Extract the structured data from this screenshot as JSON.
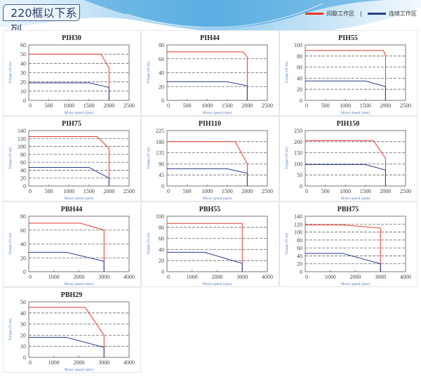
{
  "header": {
    "title": "220框以下系列"
  },
  "legend": {
    "intermittent": "间歇工作区",
    "continuous": "连续工作区",
    "separator": "|",
    "intermittent_color": "#e8382c",
    "continuous_color": "#283a8c"
  },
  "chart_data": [
    {
      "type": "line",
      "title": "PIH30",
      "xlabel": "Motor speed (rpm)",
      "ylabel": "Torque (N·m)",
      "xlim": [
        0,
        2500
      ],
      "xticks": [
        0,
        500,
        1000,
        1500,
        2000,
        2500
      ],
      "ylim": [
        0,
        60
      ],
      "yticks": [
        0,
        10,
        20,
        30,
        40,
        50,
        60
      ],
      "grid": "dashed",
      "series": [
        {
          "x": [
            0,
            1800,
            2000,
            2000
          ],
          "y": [
            50,
            50,
            35,
            0
          ]
        },
        {
          "x": [
            0,
            1500,
            2000,
            2000
          ],
          "y": [
            19,
            19,
            14,
            0
          ]
        }
      ]
    },
    {
      "type": "line",
      "title": "PIH44",
      "xlabel": "Motor speed (rpm)",
      "ylabel": "Torque (N·m)",
      "xlim": [
        0,
        2500
      ],
      "xticks": [
        0,
        500,
        1000,
        1500,
        2000,
        2500
      ],
      "ylim": [
        0,
        80
      ],
      "yticks": [
        0,
        20,
        40,
        60,
        80
      ],
      "grid": "dashed",
      "series": [
        {
          "x": [
            0,
            1900,
            2000,
            2000
          ],
          "y": [
            70,
            70,
            62,
            0
          ]
        },
        {
          "x": [
            0,
            1500,
            2000,
            2000
          ],
          "y": [
            27,
            27,
            21,
            0
          ]
        }
      ]
    },
    {
      "type": "line",
      "title": "PIH55",
      "xlabel": "Motor speed (rpm)",
      "ylabel": "Torque (N·m)",
      "xlim": [
        0,
        2500
      ],
      "xticks": [
        0,
        500,
        1000,
        1500,
        2000,
        2500
      ],
      "ylim": [
        0,
        100
      ],
      "yticks": [
        0,
        20,
        40,
        60,
        80,
        100
      ],
      "grid": "dashed",
      "series": [
        {
          "x": [
            0,
            1950,
            2000,
            2000
          ],
          "y": [
            90,
            90,
            80,
            0
          ]
        },
        {
          "x": [
            0,
            1500,
            2000,
            2000
          ],
          "y": [
            35,
            35,
            25,
            0
          ]
        }
      ]
    },
    {
      "type": "line",
      "title": "PIH75",
      "xlabel": "Motor speed (rpm)",
      "ylabel": "Torque (N·m)",
      "xlim": [
        0,
        2500
      ],
      "xticks": [
        0,
        500,
        1000,
        1500,
        2000,
        2500
      ],
      "ylim": [
        0,
        140
      ],
      "yticks": [
        0,
        20,
        40,
        60,
        80,
        100,
        120,
        140
      ],
      "grid": "dashed",
      "series": [
        {
          "x": [
            0,
            1700,
            2000,
            2000
          ],
          "y": [
            125,
            125,
            95,
            0
          ]
        },
        {
          "x": [
            0,
            1500,
            2000,
            2000
          ],
          "y": [
            47,
            47,
            20,
            0
          ]
        }
      ]
    },
    {
      "type": "line",
      "title": "PIH110",
      "xlabel": "Motor speed (rpm)",
      "ylabel": "Torque (N·m)",
      "xlim": [
        0,
        2500
      ],
      "xticks": [
        0,
        500,
        1000,
        1500,
        2000,
        2500
      ],
      "ylim": [
        0,
        225
      ],
      "yticks": [
        0,
        45,
        90,
        135,
        180,
        225
      ],
      "grid": "dashed",
      "series": [
        {
          "x": [
            0,
            1700,
            2000,
            2000
          ],
          "y": [
            180,
            180,
            90,
            0
          ]
        },
        {
          "x": [
            0,
            1500,
            2000,
            2000
          ],
          "y": [
            70,
            70,
            52,
            0
          ]
        }
      ]
    },
    {
      "type": "line",
      "title": "PIH150",
      "xlabel": "Motor speed (rpm)",
      "ylabel": "Torque (N·m)",
      "xlim": [
        0,
        2500
      ],
      "xticks": [
        0,
        500,
        1000,
        1500,
        2000,
        2500
      ],
      "ylim": [
        0,
        250
      ],
      "yticks": [
        0,
        50,
        100,
        150,
        200,
        250
      ],
      "grid": "dashed",
      "series": [
        {
          "x": [
            0,
            1700,
            2000,
            2000
          ],
          "y": [
            205,
            205,
            125,
            0
          ]
        },
        {
          "x": [
            0,
            1500,
            2000,
            2000
          ],
          "y": [
            97,
            97,
            72,
            0
          ]
        }
      ]
    },
    {
      "type": "line",
      "title": "PBH44",
      "xlabel": "Motor speed (rpm)",
      "ylabel": "Torque (N·m)",
      "xlim": [
        0,
        4000
      ],
      "xticks": [
        0,
        1000,
        2000,
        3000,
        4000
      ],
      "ylim": [
        0,
        80
      ],
      "yticks": [
        0,
        20,
        40,
        60,
        80
      ],
      "grid": "dashed",
      "series": [
        {
          "x": [
            0,
            2050,
            3000,
            3000
          ],
          "y": [
            70,
            70,
            60,
            0
          ]
        },
        {
          "x": [
            0,
            1500,
            3000,
            3000
          ],
          "y": [
            28,
            28,
            15,
            0
          ]
        }
      ]
    },
    {
      "type": "line",
      "title": "PBH55",
      "xlabel": "Motor speed (rpm)",
      "ylabel": "Torque (N·m)",
      "xlim": [
        0,
        4000
      ],
      "xticks": [
        0,
        1000,
        2000,
        3000,
        4000
      ],
      "ylim": [
        0,
        100
      ],
      "yticks": [
        0,
        20,
        40,
        60,
        80,
        100
      ],
      "grid": "dashed",
      "series": [
        {
          "x": [
            0,
            3000,
            3000
          ],
          "y": [
            87,
            87,
            0
          ]
        },
        {
          "x": [
            0,
            1500,
            3000,
            3000
          ],
          "y": [
            35,
            35,
            15,
            0
          ]
        }
      ]
    },
    {
      "type": "line",
      "title": "PBH75",
      "xlabel": "Motor speed (rpm)",
      "ylabel": "Torque (N·m)",
      "xlim": [
        0,
        4000
      ],
      "xticks": [
        0,
        1000,
        2000,
        3000,
        4000
      ],
      "ylim": [
        0,
        140
      ],
      "yticks": [
        0,
        20,
        40,
        60,
        80,
        100,
        120,
        140
      ],
      "grid": "dashed",
      "series": [
        {
          "x": [
            0,
            1500,
            3000,
            3000
          ],
          "y": [
            118,
            118,
            110,
            0
          ]
        },
        {
          "x": [
            0,
            1500,
            3000,
            3000
          ],
          "y": [
            46,
            46,
            20,
            0
          ]
        }
      ]
    },
    {
      "type": "line",
      "title": "PBH29",
      "xlabel": "Motor speed (rpm)",
      "ylabel": "Torque (N·m)",
      "xlim": [
        0,
        4000
      ],
      "xticks": [
        0,
        1000,
        2000,
        3000,
        4000
      ],
      "ylim": [
        0,
        50
      ],
      "yticks": [
        0,
        10,
        20,
        30,
        40,
        50
      ],
      "grid": "dashed",
      "series": [
        {
          "x": [
            0,
            2250,
            3000,
            3000
          ],
          "y": [
            45,
            45,
            20,
            0
          ]
        },
        {
          "x": [
            0,
            1500,
            3000,
            3000
          ],
          "y": [
            18,
            18,
            9,
            0
          ]
        }
      ]
    }
  ]
}
